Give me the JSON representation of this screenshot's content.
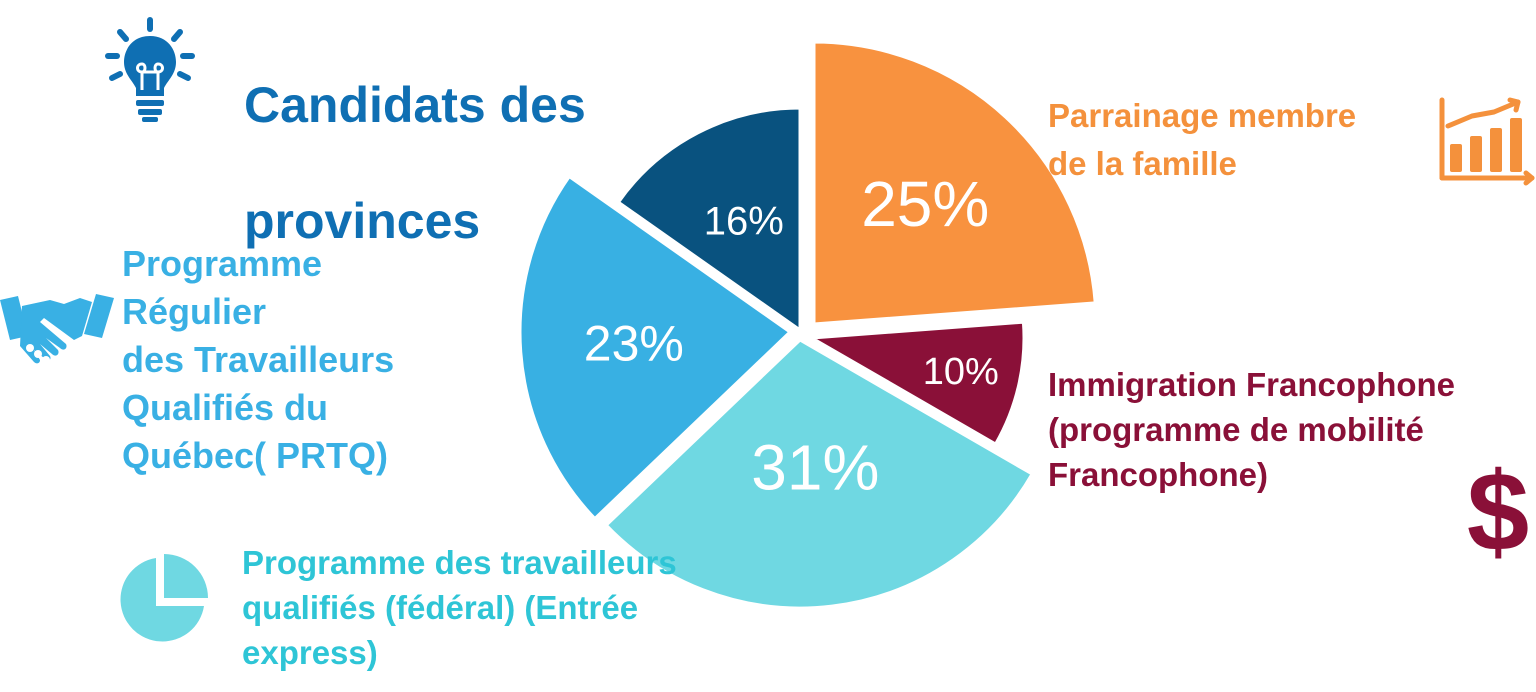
{
  "header": {
    "title_line1": "Candidats des",
    "title_line2": "provinces",
    "title_color": "#0f6fb3",
    "icon": "lightbulb-icon"
  },
  "legend": {
    "family": {
      "text": "Parrainage membre\nde la famille",
      "color": "#f4913c",
      "icon": "bar-chart-growth-icon"
    },
    "prtq": {
      "text": "Programme\nRégulier\ndes Travailleurs\nQualifiés du\nQuébec( PRTQ)",
      "color": "#39b0e4",
      "icon": "handshake-icon"
    },
    "francophone": {
      "text": "Immigration Francophone\n(programme de mobilité\nFrancophone)",
      "color": "#8a1038",
      "icon": "dollar-sign-icon"
    },
    "express": {
      "text": "Programme des travailleurs\nqualifiés (fédéral) (Entrée\nexpress)",
      "color": "#2ec5d6",
      "icon": "pie-chart-icon"
    }
  },
  "chart_data": {
    "type": "pie",
    "title": "Candidats des provinces",
    "series": [
      {
        "label": "25%",
        "value": 25,
        "color": "#f8923f"
      },
      {
        "label": "10%",
        "value": 10,
        "color": "#8a1038"
      },
      {
        "label": "31%",
        "value": 31,
        "color": "#6fd8e2"
      },
      {
        "label": "23%",
        "value": 23,
        "color": "#38b0e3"
      },
      {
        "label": "16%",
        "value": 16,
        "color": "#09527f"
      }
    ],
    "slice_names": [
      "Parrainage membre de la famille",
      "Immigration Francophone (programme de mobilité Francophone)",
      "Programme des travailleurs qualifiés (fédéral) (Entrée express)",
      "Programme Régulier des Travailleurs Qualifiés du Québec( PRTQ)",
      "Candidats des provinces"
    ],
    "legend": "around"
  }
}
